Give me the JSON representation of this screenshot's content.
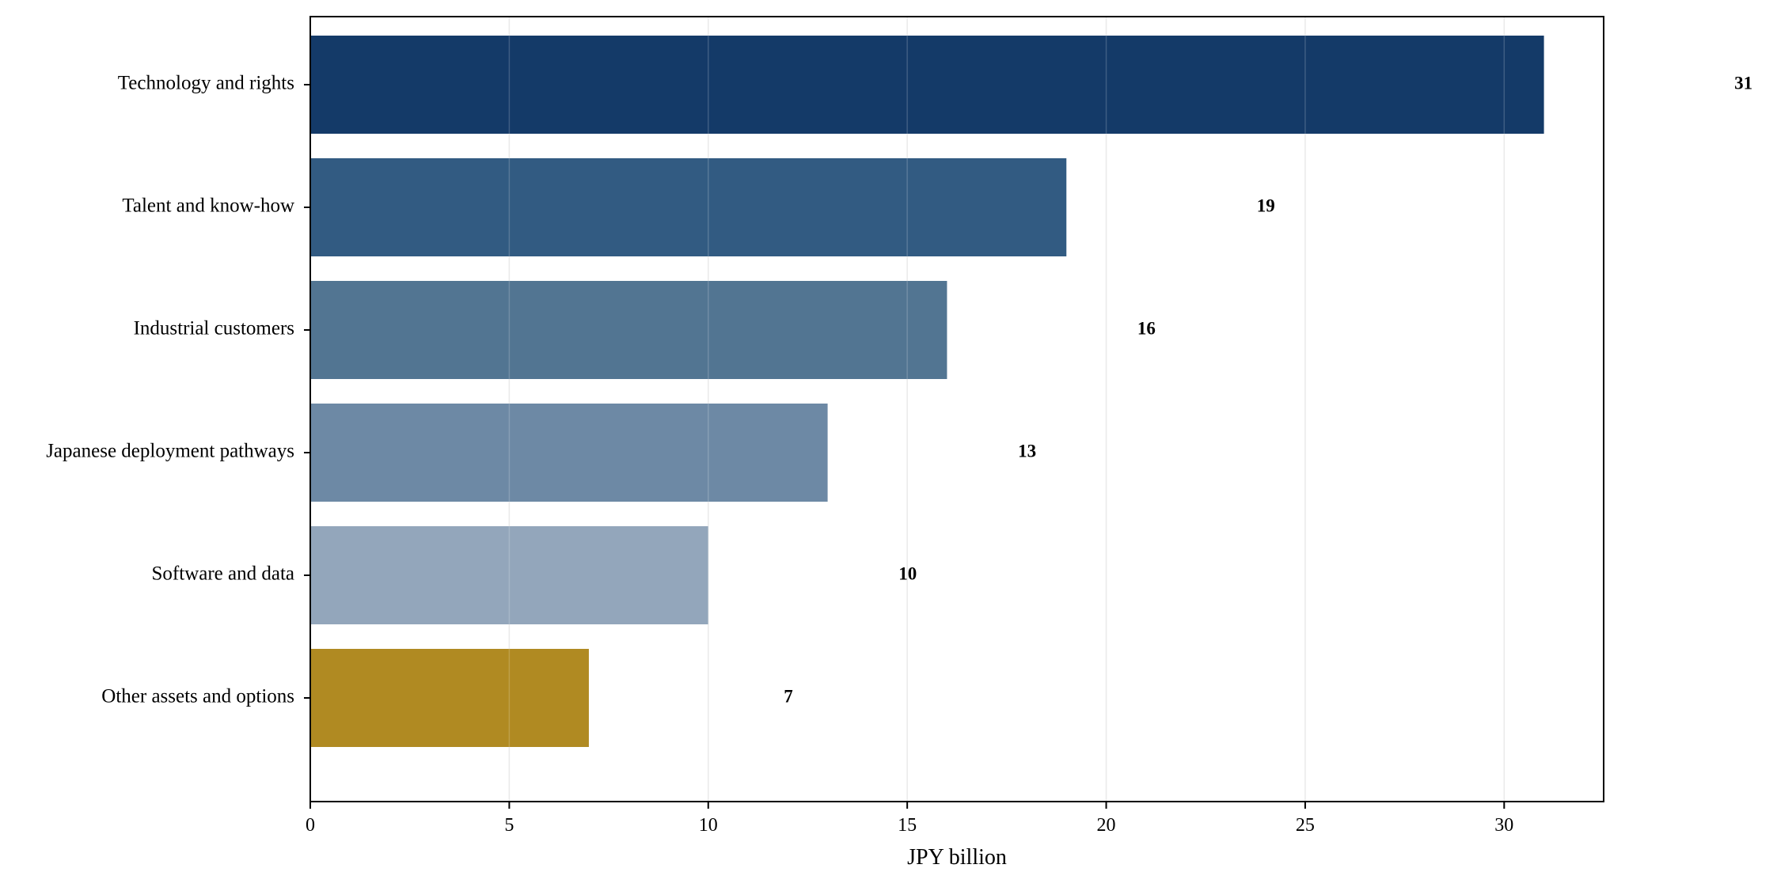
{
  "chart_data": {
    "type": "bar",
    "orientation": "horizontal",
    "categories": [
      "Technology and rights",
      "Talent and know-how",
      "Industrial customers",
      "Japanese deployment pathways",
      "Software and data",
      "Other assets and options"
    ],
    "values": [
      31,
      19,
      16,
      13,
      10,
      7
    ],
    "value_labels": [
      "31",
      "19",
      "16",
      "13",
      "10",
      "7"
    ],
    "bar_colors": [
      "#143a68",
      "#325b82",
      "#527592",
      "#6d89a5",
      "#93a6bb",
      "#b08a22"
    ],
    "title": "",
    "xlabel": "JPY billion",
    "ylabel": "",
    "xlim": [
      0,
      32.5
    ],
    "xticks": [
      0,
      5,
      10,
      15,
      20,
      25,
      30
    ],
    "xtick_labels": [
      "0",
      "5",
      "10",
      "15",
      "20",
      "25",
      "30"
    ],
    "grid": "vertical",
    "legend": "none"
  }
}
